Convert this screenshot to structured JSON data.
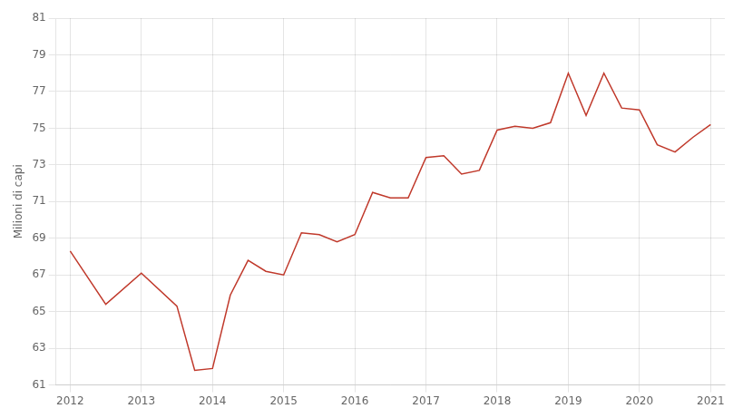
{
  "chart_data": {
    "type": "line",
    "ylabel": "Milioni di capi",
    "x": [
      2012.0,
      2012.5,
      2013.0,
      2013.5,
      2013.75,
      2014.0,
      2014.25,
      2014.5,
      2014.75,
      2015.0,
      2015.25,
      2015.5,
      2015.75,
      2016.0,
      2016.25,
      2016.5,
      2016.75,
      2017.0,
      2017.25,
      2017.5,
      2017.75,
      2018.0,
      2018.25,
      2018.5,
      2018.75,
      2019.0,
      2019.25,
      2019.5,
      2019.75,
      2020.0,
      2020.25,
      2020.5,
      2020.75,
      2021.0
    ],
    "values": [
      68.3,
      65.4,
      67.1,
      65.3,
      61.8,
      61.9,
      65.9,
      67.8,
      67.2,
      67.0,
      69.3,
      69.2,
      68.8,
      69.2,
      71.5,
      71.2,
      71.2,
      73.4,
      73.5,
      72.5,
      72.7,
      74.9,
      75.1,
      75.0,
      75.3,
      78.0,
      75.7,
      78.0,
      76.1,
      76.0,
      74.1,
      73.7,
      74.5,
      75.2
    ],
    "color": "#c0392b",
    "xlim": [
      2011.8,
      2021.2
    ],
    "xticks": [
      2012,
      2013,
      2014,
      2015,
      2016,
      2017,
      2018,
      2019,
      2020,
      2021
    ],
    "ylim": [
      61,
      81
    ],
    "yticks": [
      61,
      63,
      65,
      67,
      69,
      71,
      73,
      75,
      77,
      79,
      81
    ],
    "grid": true
  }
}
